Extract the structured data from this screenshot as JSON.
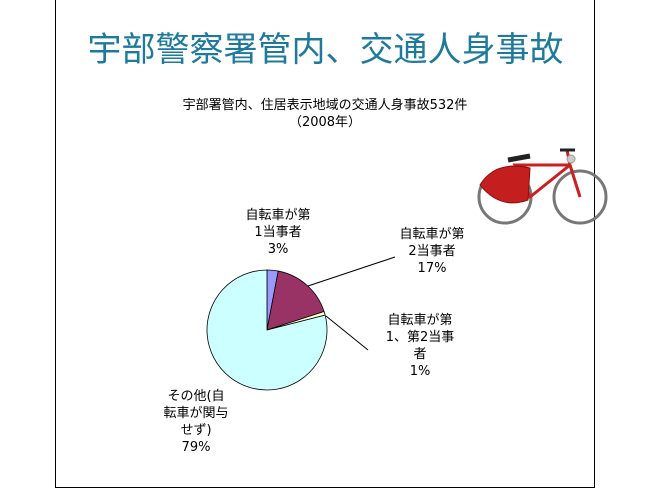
{
  "page_title": "宇部警察署管内、交通人身事故",
  "chart_data": {
    "type": "pie",
    "title": "宇部署管内、住居表示地域の交通人身事故532件",
    "subtitle": "（2008年）",
    "categories": [
      "自転車が第1当事者",
      "自転車が第2当事者",
      "自転車が第1、第2当事者",
      "その他(自転車が関与せず)"
    ],
    "values": [
      3,
      17,
      1,
      79
    ],
    "value_labels": [
      "3%",
      "17%",
      "1%",
      "79%"
    ],
    "colors": [
      "#9999ff",
      "#993366",
      "#ffffcc",
      "#ccffff"
    ]
  }
}
